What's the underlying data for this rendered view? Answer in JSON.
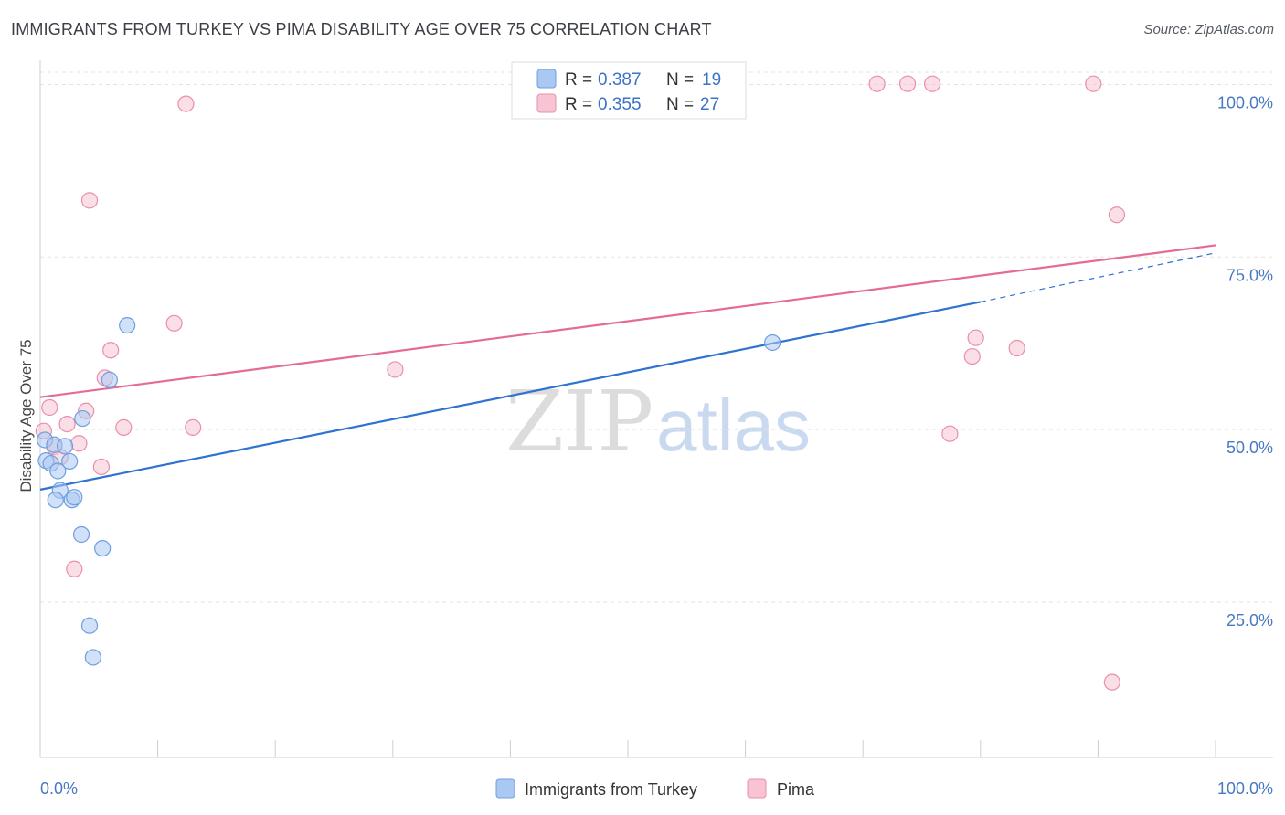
{
  "title": "IMMIGRANTS FROM TURKEY VS PIMA DISABILITY AGE OVER 75 CORRELATION CHART",
  "source": "Source: ZipAtlas.com",
  "watermark": {
    "zip": "ZIP",
    "atlas": "atlas"
  },
  "legend": [
    {
      "r_label": "R =",
      "r_value": "0.387",
      "n_label": "N =",
      "n_value": "19",
      "color": "#a9c8f2",
      "stroke": "#6f9fe0"
    },
    {
      "r_label": "R =",
      "r_value": "0.355",
      "n_label": "N =",
      "n_value": "27",
      "color": "#f8c4d3",
      "stroke": "#e98fab"
    }
  ],
  "bottom_legend": [
    {
      "label": "Immigrants from Turkey",
      "color": "#a9c8f2",
      "stroke": "#6f9fe0"
    },
    {
      "label": "Pima",
      "color": "#f8c4d3",
      "stroke": "#e98fab"
    }
  ],
  "chart_data": {
    "type": "scatter",
    "title": "IMMIGRANTS FROM TURKEY VS PIMA DISABILITY AGE OVER 75 CORRELATION CHART",
    "xlabel": "",
    "ylabel": "Disability Age Over 75",
    "x_tick_labels": [
      "0.0%",
      "100.0%"
    ],
    "y_tick_labels": [
      "25.0%",
      "50.0%",
      "75.0%",
      "100.0%"
    ],
    "y_ticks": [
      25,
      50,
      75,
      100
    ],
    "xlim": [
      0,
      100
    ],
    "ylim": [
      2.5,
      103.5
    ],
    "grid": true,
    "legend_position": "top-center",
    "series": [
      {
        "name": "Immigrants from Turkey",
        "color": "#6f9fe0",
        "fill": "#a9c8f2",
        "trend_color": "#2f72d0",
        "points": [
          [
            0.4,
            48.5
          ],
          [
            0.5,
            45.5
          ],
          [
            0.9,
            45.1
          ],
          [
            1.2,
            47.8
          ],
          [
            1.5,
            44.0
          ],
          [
            1.7,
            41.2
          ],
          [
            2.1,
            47.6
          ],
          [
            1.3,
            39.8
          ],
          [
            2.5,
            45.4
          ],
          [
            2.7,
            39.8
          ],
          [
            2.9,
            40.2
          ],
          [
            3.6,
            51.6
          ],
          [
            3.5,
            34.8
          ],
          [
            4.2,
            21.6
          ],
          [
            4.5,
            17.0
          ],
          [
            5.3,
            32.8
          ],
          [
            5.9,
            57.2
          ],
          [
            7.4,
            65.1
          ],
          [
            62.3,
            62.6
          ]
        ],
        "trend": {
          "x0": 0,
          "y0": 41.3,
          "x1": 80,
          "y1": 68.5,
          "dash_x1": 100,
          "dash_y1": 75.6
        }
      },
      {
        "name": "Pima",
        "color": "#e98fab",
        "fill": "#f8c4d3",
        "trend_color": "#e46b93",
        "points": [
          [
            0.3,
            49.8
          ],
          [
            0.8,
            53.2
          ],
          [
            1.2,
            47.5
          ],
          [
            1.7,
            46.0
          ],
          [
            2.3,
            50.8
          ],
          [
            3.3,
            48.0
          ],
          [
            2.9,
            29.8
          ],
          [
            3.9,
            52.7
          ],
          [
            4.2,
            83.2
          ],
          [
            5.2,
            44.6
          ],
          [
            5.5,
            57.5
          ],
          [
            6.0,
            61.5
          ],
          [
            7.1,
            50.3
          ],
          [
            11.4,
            65.4
          ],
          [
            12.4,
            97.2
          ],
          [
            13.0,
            50.3
          ],
          [
            30.2,
            58.7
          ],
          [
            71.2,
            100.1
          ],
          [
            73.8,
            100.1
          ],
          [
            75.9,
            100.1
          ],
          [
            89.6,
            100.1
          ],
          [
            91.6,
            81.1
          ],
          [
            77.4,
            49.4
          ],
          [
            79.3,
            60.6
          ],
          [
            79.6,
            63.3
          ],
          [
            83.1,
            61.8
          ],
          [
            91.2,
            13.4
          ]
        ],
        "trend": {
          "x0": 0,
          "y0": 54.7,
          "x1": 100,
          "y1": 76.7
        }
      }
    ]
  }
}
